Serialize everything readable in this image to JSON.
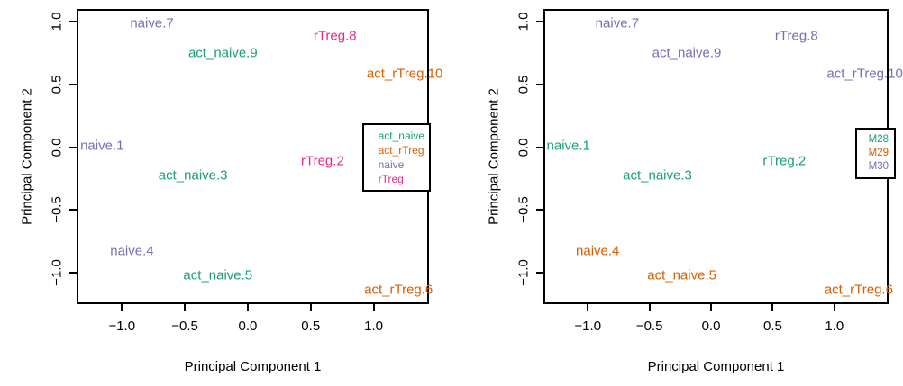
{
  "figure": {
    "description": "Two MDS scatter plots of samples labelled by name",
    "background": "#ffffff",
    "axis_color": "#000000"
  },
  "chart_data": [
    {
      "type": "scatter",
      "title": "",
      "panel": "left",
      "xlabel": "Principal Component 1",
      "ylabel": "Principal Component 2",
      "xlim": [
        -1.36,
        1.44
      ],
      "ylim": [
        -1.25,
        1.1
      ],
      "grid": false,
      "legend_position": "right-inside",
      "xticks": [
        {
          "v": -1.0,
          "label": "−1.0"
        },
        {
          "v": -0.5,
          "label": "−0.5"
        },
        {
          "v": 0.0,
          "label": "0.0"
        },
        {
          "v": 0.5,
          "label": "0.5"
        },
        {
          "v": 1.0,
          "label": "1.0"
        }
      ],
      "yticks": [
        {
          "v": 1.0,
          "label": "1.0"
        },
        {
          "v": 0.5,
          "label": "0.5"
        },
        {
          "v": 0.0,
          "label": "0.0"
        },
        {
          "v": -0.5,
          "label": "−0.5"
        },
        {
          "v": -1.0,
          "label": "−1.0"
        }
      ],
      "colors": {
        "act_naive": "#1B9E77",
        "act_rTreg": "#D95F02",
        "naive": "#7570B3",
        "rTreg": "#E7298A"
      },
      "legend": [
        {
          "label": "act_naive",
          "color": "#1B9E77"
        },
        {
          "label": "act_rTreg",
          "color": "#D95F02"
        },
        {
          "label": "naive",
          "color": "#7570B3"
        },
        {
          "label": "rTreg",
          "color": "#E7298A"
        }
      ],
      "points": [
        {
          "label": "naive.1",
          "x": -1.17,
          "y": 0.01,
          "group": "naive"
        },
        {
          "label": "rTreg.2",
          "x": 0.6,
          "y": -0.11,
          "group": "rTreg"
        },
        {
          "label": "act_naive.3",
          "x": -0.44,
          "y": -0.23,
          "group": "act_naive"
        },
        {
          "label": "naive.4",
          "x": -0.93,
          "y": -0.84,
          "group": "naive"
        },
        {
          "label": "act_naive.5",
          "x": -0.24,
          "y": -1.03,
          "group": "act_naive"
        },
        {
          "label": "act_rTreg.6",
          "x": 1.21,
          "y": -1.15,
          "group": "act_rTreg"
        },
        {
          "label": "naive.7",
          "x": -0.77,
          "y": 1.0,
          "group": "naive"
        },
        {
          "label": "rTreg.8",
          "x": 0.7,
          "y": 0.9,
          "group": "rTreg"
        },
        {
          "label": "act_naive.9",
          "x": -0.2,
          "y": 0.76,
          "group": "act_naive"
        },
        {
          "label": "act_rTreg.10",
          "x": 1.26,
          "y": 0.59,
          "group": "act_rTreg"
        }
      ]
    },
    {
      "type": "scatter",
      "title": "",
      "panel": "right",
      "xlabel": "Principal Component 1",
      "ylabel": "Principal Component 2",
      "xlim": [
        -1.36,
        1.44
      ],
      "ylim": [
        -1.25,
        1.1
      ],
      "grid": false,
      "legend_position": "right-inside",
      "xticks": [
        {
          "v": -1.0,
          "label": "−1.0"
        },
        {
          "v": -0.5,
          "label": "−0.5"
        },
        {
          "v": 0.0,
          "label": "0.0"
        },
        {
          "v": 0.5,
          "label": "0.5"
        },
        {
          "v": 1.0,
          "label": "1.0"
        }
      ],
      "yticks": [
        {
          "v": 1.0,
          "label": "1.0"
        },
        {
          "v": 0.5,
          "label": "0.5"
        },
        {
          "v": 0.0,
          "label": "0.0"
        },
        {
          "v": -0.5,
          "label": "−0.5"
        },
        {
          "v": -1.0,
          "label": "−1.0"
        }
      ],
      "colors": {
        "M28": "#1B9E77",
        "M29": "#D95F02",
        "M30": "#7570B3"
      },
      "legend": [
        {
          "label": "M28",
          "color": "#1B9E77"
        },
        {
          "label": "M29",
          "color": "#D95F02"
        },
        {
          "label": "M30",
          "color": "#7570B3"
        }
      ],
      "points": [
        {
          "label": "naive.1",
          "x": -1.17,
          "y": 0.01,
          "group": "M28"
        },
        {
          "label": "rTreg.2",
          "x": 0.6,
          "y": -0.11,
          "group": "M28"
        },
        {
          "label": "act_naive.3",
          "x": -0.44,
          "y": -0.23,
          "group": "M28"
        },
        {
          "label": "naive.4",
          "x": -0.93,
          "y": -0.84,
          "group": "M29"
        },
        {
          "label": "act_naive.5",
          "x": -0.24,
          "y": -1.03,
          "group": "M29"
        },
        {
          "label": "act_rTreg.6",
          "x": 1.21,
          "y": -1.15,
          "group": "M29"
        },
        {
          "label": "naive.7",
          "x": -0.77,
          "y": 1.0,
          "group": "M30"
        },
        {
          "label": "rTreg.8",
          "x": 0.7,
          "y": 0.9,
          "group": "M30"
        },
        {
          "label": "act_naive.9",
          "x": -0.2,
          "y": 0.76,
          "group": "M30"
        },
        {
          "label": "act_rTreg.10",
          "x": 1.26,
          "y": 0.59,
          "group": "M30"
        }
      ]
    }
  ]
}
